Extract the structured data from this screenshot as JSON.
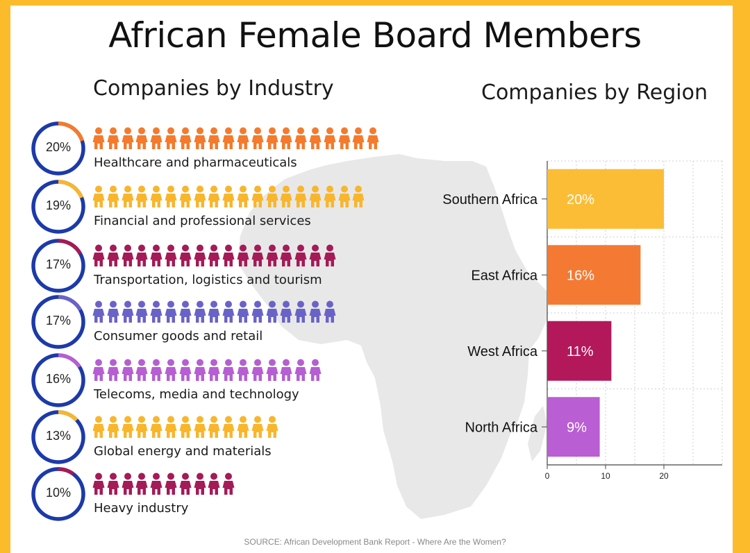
{
  "title": "African Female Board Members",
  "industry_title": "Companies by Industry",
  "region_title": "Companies by Region",
  "source": "SOURCE: African Development Bank Report - Where Are the Women?",
  "chart_data": [
    {
      "type": "bar",
      "orientation": "horizontal",
      "style": "pictogram with donut percentage",
      "title": "Companies by Industry",
      "categories": [
        "Healthcare and pharmaceuticals",
        "Financial and professional services",
        "Transportation, logistics and tourism",
        "Consumer goods and retail",
        "Telecoms, media and technology",
        "Global energy and materials",
        "Heavy industry"
      ],
      "values": [
        20,
        19,
        17,
        17,
        16,
        13,
        10
      ],
      "labels": [
        "20%",
        "19%",
        "17%",
        "17%",
        "16%",
        "13%",
        "10%"
      ],
      "colors": [
        "#f47a2c",
        "#f8b62d",
        "#a31b57",
        "#6a63c7",
        "#b55fd2",
        "#f8b62d",
        "#a31b57"
      ],
      "ring_color": "#1c3aa9"
    },
    {
      "type": "bar",
      "orientation": "horizontal",
      "title": "Companies by Region",
      "categories": [
        "Southern Africa",
        "East Africa",
        "West Africa",
        "North Africa"
      ],
      "values": [
        20,
        16,
        11,
        9
      ],
      "labels": [
        "20%",
        "16%",
        "11%",
        "9%"
      ],
      "colors": [
        "#fbbd36",
        "#f47a34",
        "#b3195a",
        "#b95ed3"
      ],
      "xticks": [
        "0",
        "10",
        "20"
      ],
      "xlim": [
        0,
        30
      ],
      "grid": true
    }
  ]
}
